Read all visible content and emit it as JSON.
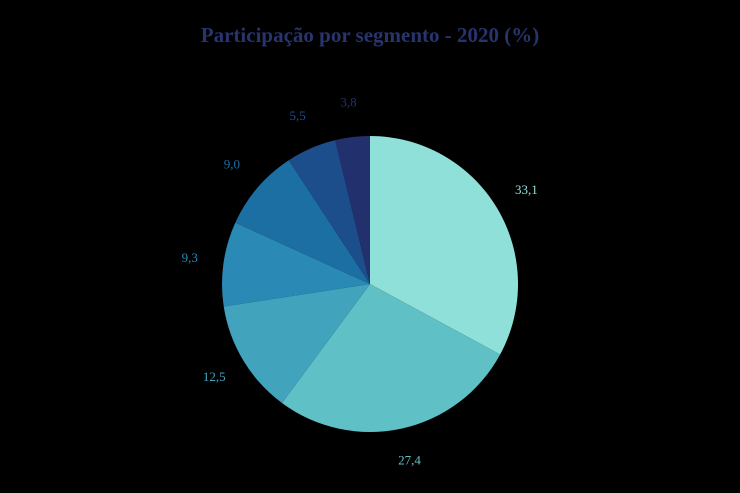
{
  "chart_data": {
    "type": "pie",
    "title": "Participação por segmento - 2020 (%)",
    "values": [
      33.1,
      27.4,
      12.5,
      9.3,
      9.0,
      5.5,
      3.8
    ],
    "value_labels": [
      "33,1",
      "27,4",
      "12,5",
      "9,3",
      "9,0",
      "5,5",
      "3,8"
    ],
    "colors": [
      "#8ee0d8",
      "#5fc0c6",
      "#42a4bc",
      "#2a8ab5",
      "#1c6fa3",
      "#1d4e8c",
      "#22306e"
    ]
  }
}
